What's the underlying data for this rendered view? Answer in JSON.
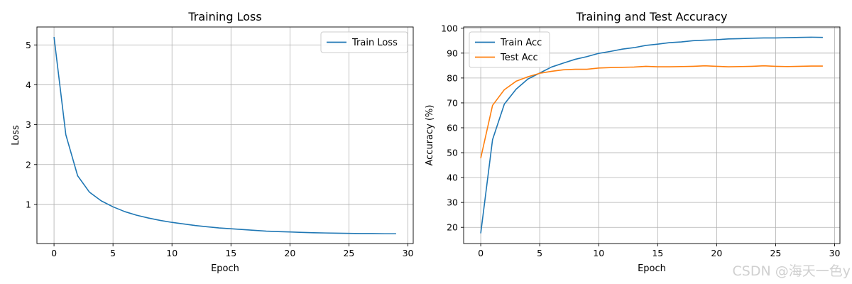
{
  "watermark": "CSDN @海天一色y",
  "chart_data": [
    {
      "type": "line",
      "title": "Training Loss",
      "xlabel": "Epoch",
      "ylabel": "Loss",
      "xlim": [
        -1.45,
        30.45
      ],
      "ylim": [
        0.02,
        5.45
      ],
      "xticks": [
        0,
        5,
        10,
        15,
        20,
        25,
        30
      ],
      "yticks": [
        1,
        2,
        3,
        4,
        5
      ],
      "grid": true,
      "legend_position": "upper right",
      "x": [
        0,
        1,
        2,
        3,
        4,
        5,
        6,
        7,
        8,
        9,
        10,
        11,
        12,
        13,
        14,
        15,
        16,
        17,
        18,
        19,
        20,
        21,
        22,
        23,
        24,
        25,
        26,
        27,
        28,
        29
      ],
      "series": [
        {
          "name": "Train Loss",
          "color": "#1f77b4",
          "values": [
            5.2,
            2.75,
            1.72,
            1.31,
            1.09,
            0.94,
            0.82,
            0.73,
            0.66,
            0.6,
            0.55,
            0.51,
            0.47,
            0.44,
            0.41,
            0.39,
            0.37,
            0.35,
            0.33,
            0.32,
            0.31,
            0.3,
            0.29,
            0.285,
            0.28,
            0.275,
            0.27,
            0.27,
            0.265,
            0.265
          ]
        }
      ]
    },
    {
      "type": "line",
      "title": "Training and Test Accuracy",
      "xlabel": "Epoch",
      "ylabel": "Accuracy (%)",
      "xlim": [
        -1.45,
        30.45
      ],
      "ylim": [
        13.5,
        100.5
      ],
      "xticks": [
        0,
        5,
        10,
        15,
        20,
        25,
        30
      ],
      "yticks": [
        20,
        30,
        40,
        50,
        60,
        70,
        80,
        90,
        100
      ],
      "grid": true,
      "legend_position": "upper left",
      "x": [
        0,
        1,
        2,
        3,
        4,
        5,
        6,
        7,
        8,
        9,
        10,
        11,
        12,
        13,
        14,
        15,
        16,
        17,
        18,
        19,
        20,
        21,
        22,
        23,
        24,
        25,
        26,
        27,
        28,
        29
      ],
      "series": [
        {
          "name": "Train Acc",
          "color": "#1f77b4",
          "values": [
            17.6,
            55.2,
            69.5,
            75.5,
            79.6,
            82.0,
            84.4,
            86.0,
            87.5,
            88.6,
            89.9,
            90.7,
            91.6,
            92.2,
            93.1,
            93.6,
            94.2,
            94.5,
            95.0,
            95.2,
            95.4,
            95.7,
            95.8,
            96.0,
            96.1,
            96.1,
            96.2,
            96.3,
            96.4,
            96.3
          ]
        },
        {
          "name": "Test Acc",
          "color": "#ff7f0e",
          "values": [
            47.8,
            69.0,
            75.3,
            78.7,
            80.5,
            81.9,
            82.7,
            83.3,
            83.5,
            83.5,
            84.0,
            84.2,
            84.3,
            84.4,
            84.7,
            84.5,
            84.5,
            84.6,
            84.7,
            84.9,
            84.7,
            84.5,
            84.6,
            84.7,
            84.9,
            84.7,
            84.6,
            84.7,
            84.8,
            84.8
          ]
        }
      ]
    }
  ]
}
